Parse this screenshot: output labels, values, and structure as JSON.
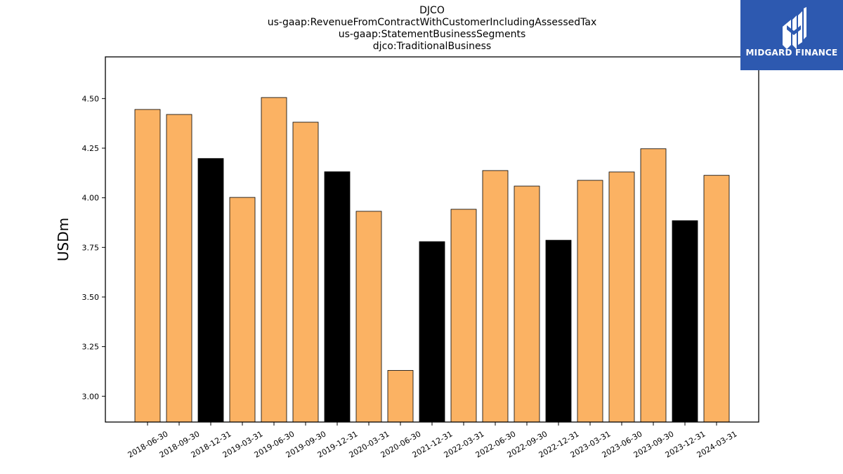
{
  "title_lines": [
    "DJCO",
    "us-gaap:RevenueFromContractWithCustomerIncludingAssessedTax",
    "us-gaap:StatementBusinessSegments",
    "djco:TraditionalBusiness"
  ],
  "logo": {
    "text": "MIDGARD FINANCE",
    "background": "#2d59b0"
  },
  "colors": {
    "bar_default": "#fbb263",
    "bar_highlight": "#000000",
    "outline": "#000000"
  },
  "chart_data": {
    "type": "bar",
    "title": "DJCO\nus-gaap:RevenueFromContractWithCustomerIncludingAssessedTax\nus-gaap:StatementBusinessSegments\ndjco:TraditionalBusiness",
    "xlabel": "",
    "ylabel": "USDm",
    "ylim": [
      2.87,
      4.71
    ],
    "yticks": [
      3.0,
      3.25,
      3.5,
      3.75,
      4.0,
      4.25,
      4.5
    ],
    "ytick_labels": [
      "3.00",
      "3.25",
      "3.50",
      "3.75",
      "4.00",
      "4.25",
      "4.50"
    ],
    "grid": false,
    "categories": [
      "2018-06-30",
      "2018-09-30",
      "2018-12-31",
      "2019-03-31",
      "2019-06-30",
      "2019-09-30",
      "2019-12-31",
      "2020-03-31",
      "2020-06-30",
      "2021-12-31",
      "2022-03-31",
      "2022-06-30",
      "2022-09-30",
      "2022-12-31",
      "2023-03-31",
      "2023-06-30",
      "2023-09-30",
      "2023-12-31",
      "2024-03-31"
    ],
    "values": [
      4.445,
      4.42,
      4.198,
      4.002,
      4.505,
      4.381,
      4.131,
      3.932,
      3.13,
      3.779,
      3.942,
      4.137,
      4.059,
      3.786,
      4.088,
      4.13,
      4.247,
      3.885,
      4.113
    ],
    "highlight": [
      false,
      false,
      true,
      false,
      false,
      false,
      true,
      false,
      false,
      true,
      false,
      false,
      false,
      true,
      false,
      false,
      false,
      true,
      false
    ]
  }
}
